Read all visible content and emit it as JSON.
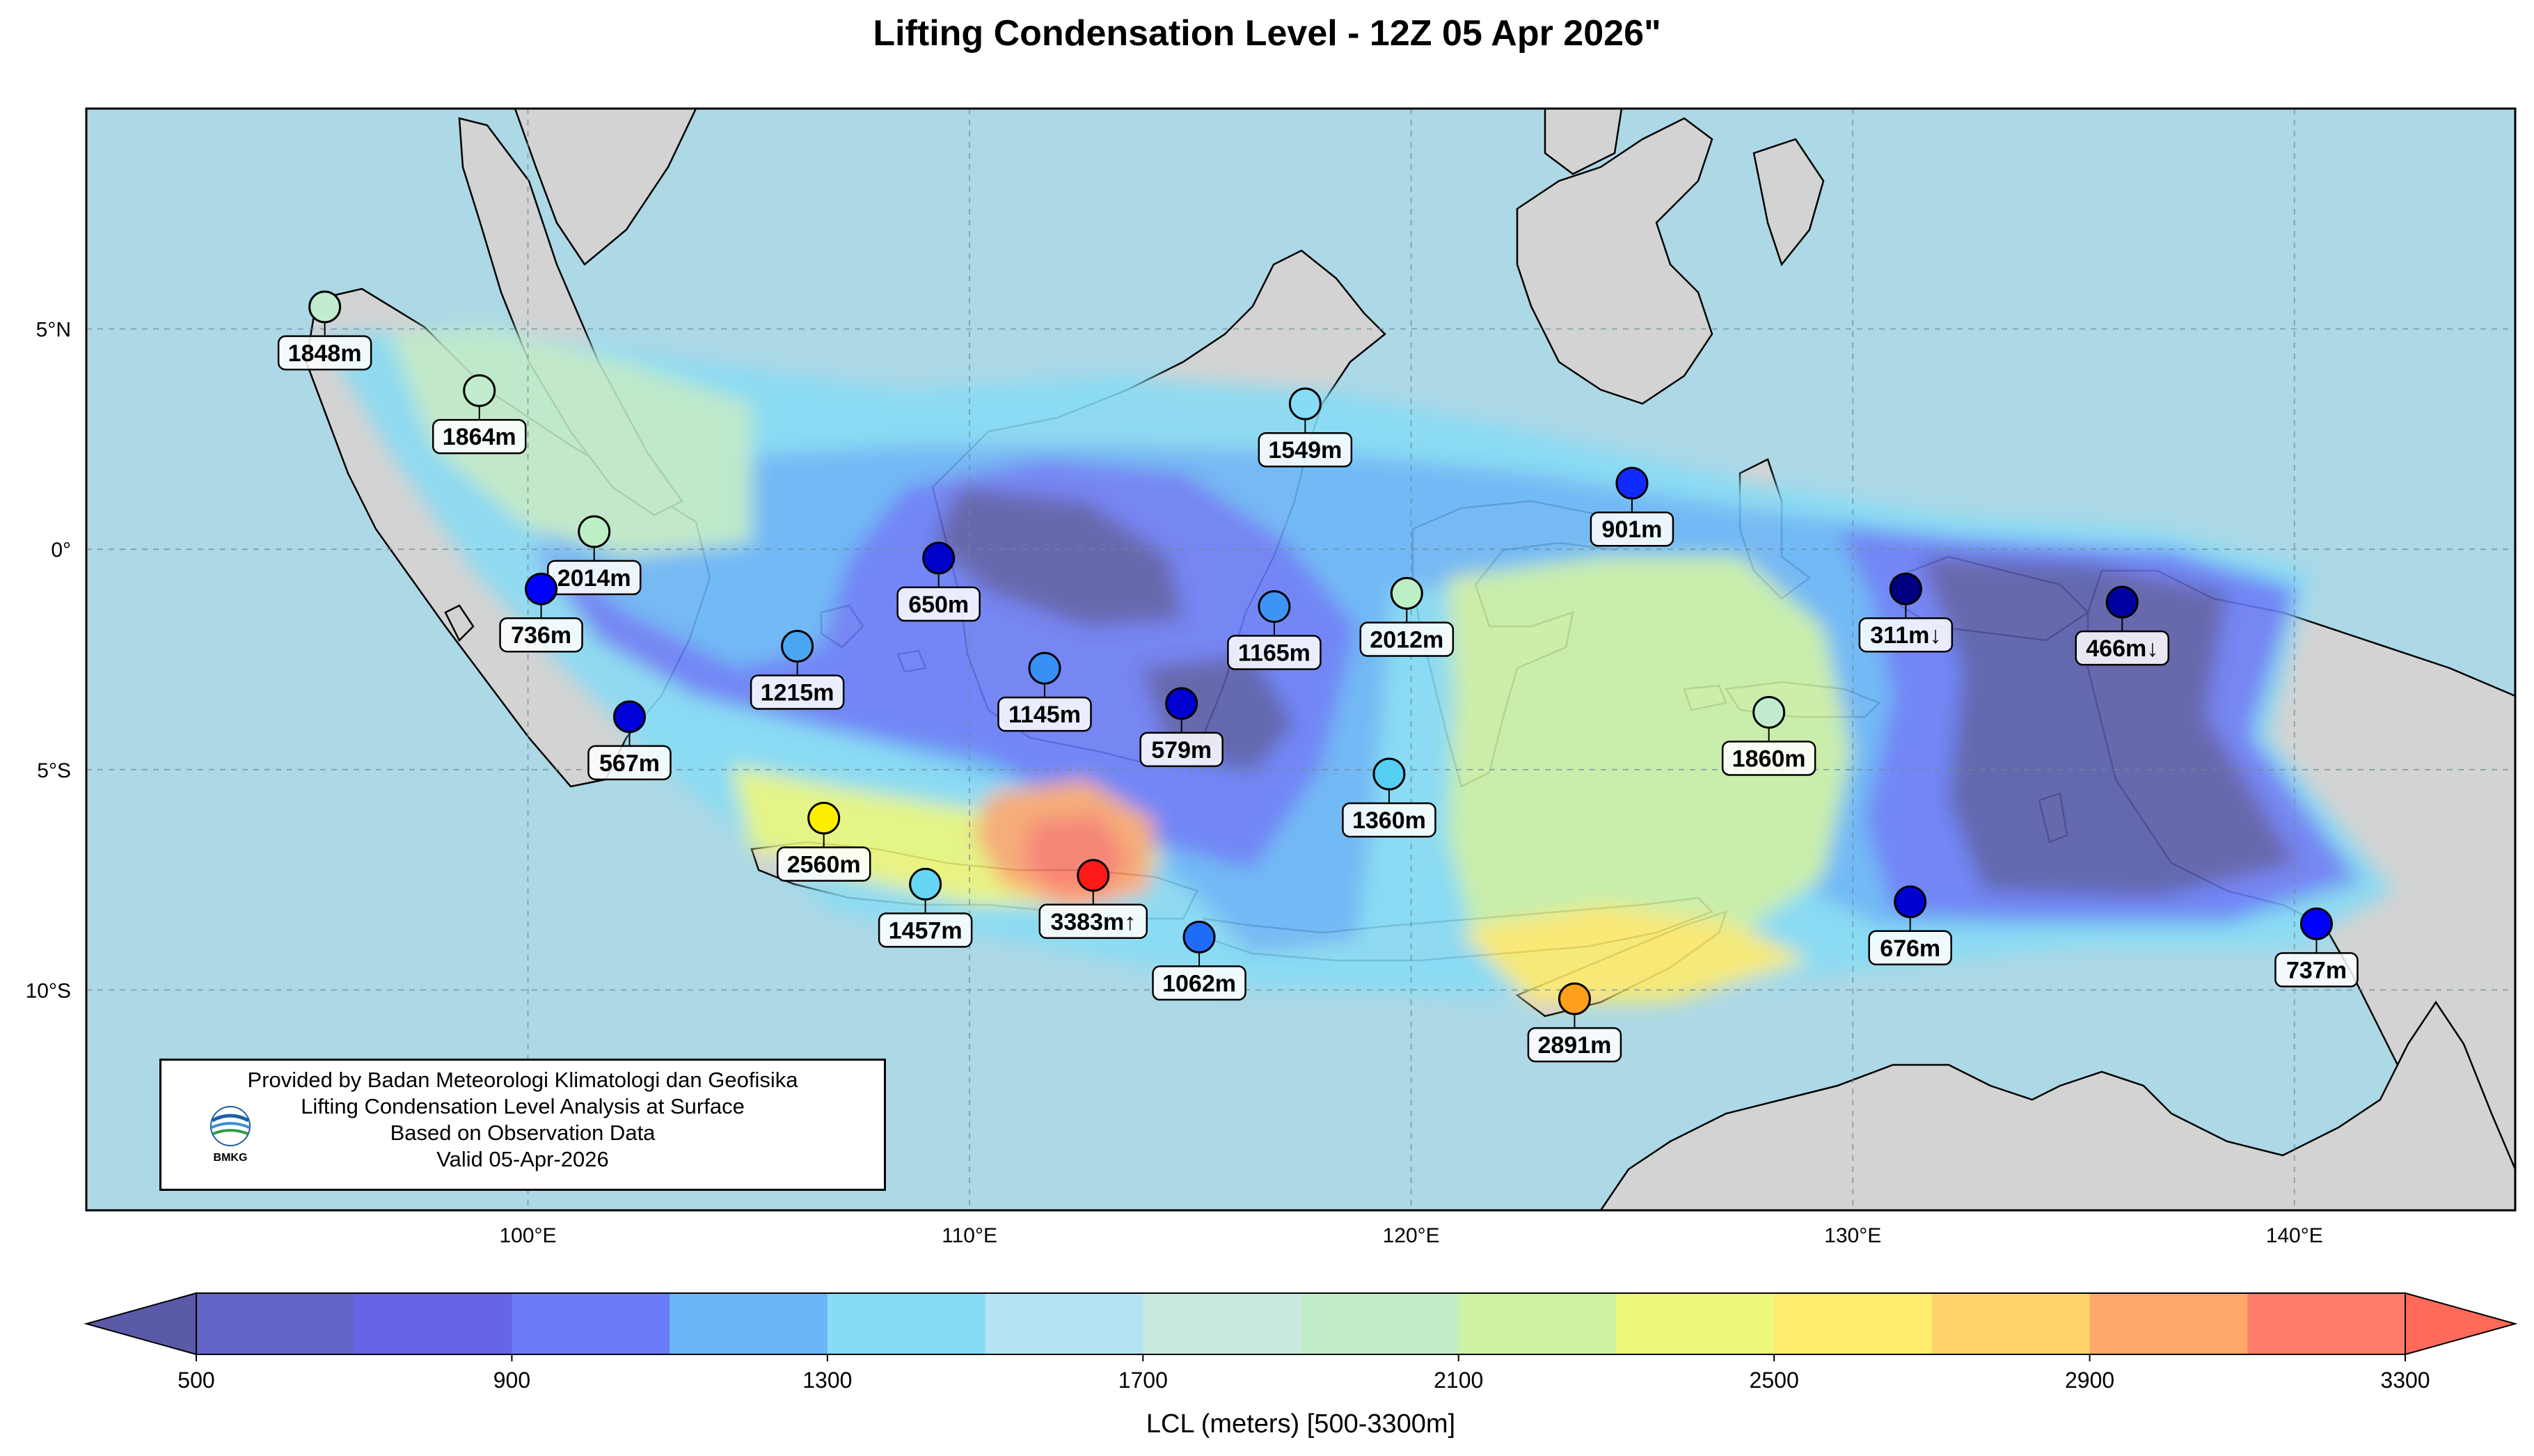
{
  "title": "Lifting Condensation Level - 12Z 05 Apr 2026\"",
  "map": {
    "lon_range": [
      90,
      145
    ],
    "lat_range": [
      -15,
      10
    ],
    "lon_ticks": [
      "100°E",
      "110°E",
      "120°E",
      "130°E",
      "140°E"
    ],
    "lat_ticks": [
      "5°N",
      "0°",
      "5°S",
      "10°S"
    ],
    "ocean_color": "#add8e6",
    "land_color": "#d3d3d3",
    "grid": true
  },
  "stations": [
    {
      "label": "1848m",
      "lon": 95.4,
      "lat": 5.5,
      "value": 1848,
      "color": "#c1ecd0"
    },
    {
      "label": "1864m",
      "lon": 98.9,
      "lat": 3.6,
      "value": 1864,
      "color": "#c1ecd0"
    },
    {
      "label": "2014m",
      "lon": 101.5,
      "lat": 0.4,
      "value": 2014,
      "color": "#bdefc4"
    },
    {
      "label": "736m",
      "lon": 100.3,
      "lat": -0.9,
      "value": 736,
      "color": "#0000ff"
    },
    {
      "label": "567m",
      "lon": 102.3,
      "lat": -3.8,
      "value": 567,
      "color": "#0000d8"
    },
    {
      "label": "1215m",
      "lon": 106.1,
      "lat": -2.2,
      "value": 1215,
      "color": "#4aa6f2"
    },
    {
      "label": "650m",
      "lon": 109.3,
      "lat": -0.2,
      "value": 650,
      "color": "#0000cc"
    },
    {
      "label": "1145m",
      "lon": 111.7,
      "lat": -2.7,
      "value": 1145,
      "color": "#3a8ff5"
    },
    {
      "label": "579m",
      "lon": 114.8,
      "lat": -3.5,
      "value": 579,
      "color": "#0000d0"
    },
    {
      "label": "1165m",
      "lon": 116.9,
      "lat": -1.3,
      "value": 1165,
      "color": "#3d94f4"
    },
    {
      "label": "1549m",
      "lon": 117.6,
      "lat": 3.3,
      "value": 1549,
      "color": "#86dcf5"
    },
    {
      "label": "2012m",
      "lon": 119.9,
      "lat": -1.0,
      "value": 2012,
      "color": "#bdefc4"
    },
    {
      "label": "1360m",
      "lon": 119.5,
      "lat": -5.1,
      "value": 1360,
      "color": "#55d0f2"
    },
    {
      "label": "901m",
      "lon": 125.0,
      "lat": 1.5,
      "value": 901,
      "color": "#1029ff"
    },
    {
      "label": "311m↓",
      "lon": 131.2,
      "lat": -0.9,
      "value": 311,
      "color": "#000080"
    },
    {
      "label": "466m↓",
      "lon": 136.1,
      "lat": -1.2,
      "value": 466,
      "color": "#0000a0"
    },
    {
      "label": "1860m",
      "lon": 128.1,
      "lat": -3.7,
      "value": 1860,
      "color": "#c1ecd0"
    },
    {
      "label": "2560m",
      "lon": 106.7,
      "lat": -6.1,
      "value": 2560,
      "color": "#ffee00"
    },
    {
      "label": "1457m",
      "lon": 109.0,
      "lat": -7.6,
      "value": 1457,
      "color": "#67d6f4"
    },
    {
      "label": "3383m↑",
      "lon": 112.8,
      "lat": -7.4,
      "value": 3383,
      "color": "#ff1a1a"
    },
    {
      "label": "1062m",
      "lon": 115.2,
      "lat": -8.8,
      "value": 1062,
      "color": "#1e6cf8"
    },
    {
      "label": "676m",
      "lon": 131.3,
      "lat": -8.0,
      "value": 676,
      "color": "#0000d0"
    },
    {
      "label": "2891m",
      "lon": 123.7,
      "lat": -10.2,
      "value": 2891,
      "color": "#ff9f1a"
    },
    {
      "label": "737m",
      "lon": 140.5,
      "lat": -8.5,
      "value": 737,
      "color": "#0000ff"
    }
  ],
  "colorbar": {
    "title": "LCL (meters) [500-3300m]",
    "tick_labels": [
      "500",
      "900",
      "1300",
      "1700",
      "2100",
      "2500",
      "2900",
      "3300"
    ],
    "tick_values": [
      500,
      900,
      1300,
      1700,
      2100,
      2500,
      2900,
      3300
    ],
    "levels": [
      500,
      700,
      900,
      1100,
      1300,
      1500,
      1700,
      1900,
      2100,
      2300,
      2500,
      2700,
      2900,
      3100,
      3300
    ],
    "colors": [
      "#6464c8",
      "#6565e6",
      "#6a7cf8",
      "#6ab6f8",
      "#86dcf5",
      "#b4e3f1",
      "#c9e9e0",
      "#c1ecc8",
      "#cdf2a4",
      "#ecf87a",
      "#ffec6a",
      "#ffd36a",
      "#ffa86a",
      "#ff7c6a"
    ],
    "under_color": "#5a5aa8",
    "over_color": "#ff6a5a",
    "extend": "both"
  },
  "info_box": {
    "lines": [
      "Provided by Badan Meteorologi Klimatologi dan Geofisika",
      "Lifting Condensation Level Analysis at Surface",
      "Based on Observation Data",
      "Valid 05-Apr-2026"
    ],
    "logo_text": "BMKG"
  }
}
